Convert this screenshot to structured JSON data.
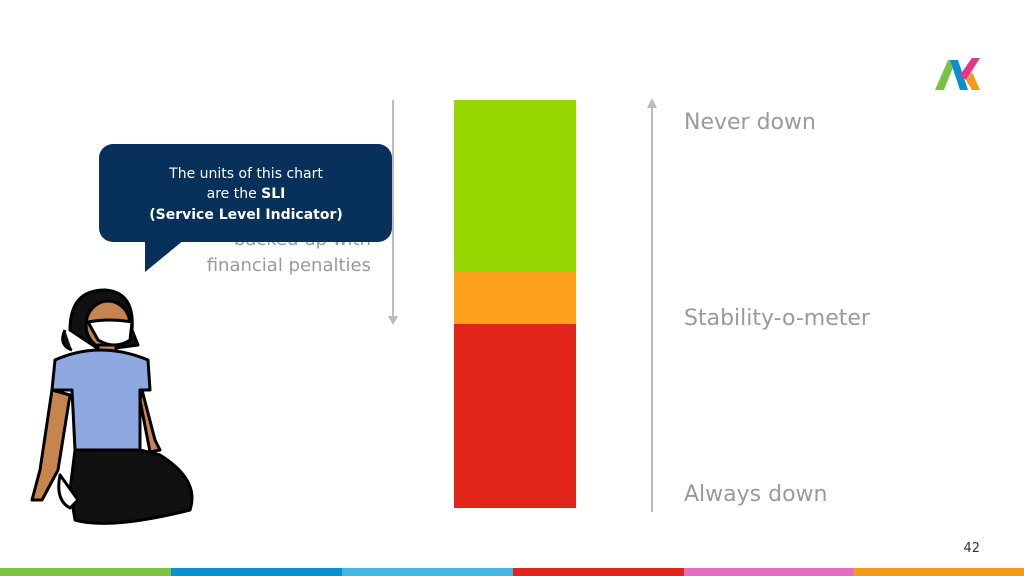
{
  "bubble": {
    "line1": "The units of this chart",
    "line2": "are the ",
    "line2_bold": "SLI",
    "line3": "(Service Level Indicator)"
  },
  "background_text": {
    "line1": "backed up with",
    "line2": "financial penalties"
  },
  "scale": {
    "top": "Never down",
    "middle": "Stability-o-meter",
    "bottom": "Always down"
  },
  "page_number": "42"
}
